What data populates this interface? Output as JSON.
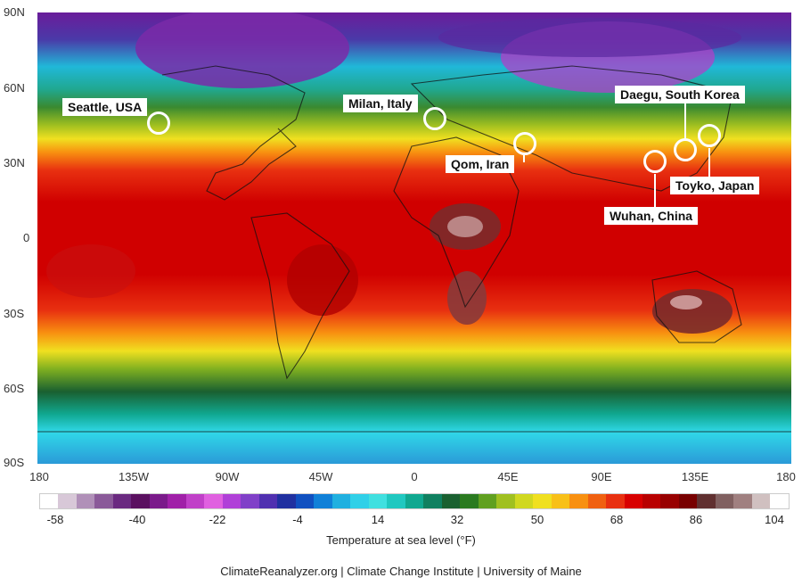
{
  "map": {
    "lat_labels": [
      "90N",
      "60N",
      "30N",
      "0",
      "30S",
      "60S",
      "90S"
    ],
    "lon_labels": [
      "180",
      "135W",
      "90W",
      "45W",
      "0",
      "45E",
      "90E",
      "135E",
      "180"
    ],
    "cities": [
      {
        "id": "seattle",
        "label": "Seattle, USA"
      },
      {
        "id": "milan",
        "label": "Milan, Italy"
      },
      {
        "id": "qom",
        "label": "Qom, Iran"
      },
      {
        "id": "daegu",
        "label": "Daegu, South Korea"
      },
      {
        "id": "tokyo",
        "label": "Toyko, Japan"
      },
      {
        "id": "wuhan",
        "label": "Wuhan, China"
      }
    ]
  },
  "legend": {
    "title": "Temperature at sea level (°F)",
    "ticks": [
      "-58",
      "-40",
      "-22",
      "-4",
      "14",
      "32",
      "50",
      "68",
      "86",
      "104"
    ],
    "colors": [
      "#ffffff",
      "#d8c8d8",
      "#b090b8",
      "#8a5a99",
      "#6a2a80",
      "#5a1060",
      "#7a1a8a",
      "#a020a8",
      "#c040c8",
      "#e060e0",
      "#b040d8",
      "#8040c8",
      "#5030b0",
      "#2030a0",
      "#1050c0",
      "#1080d8",
      "#20b0e0",
      "#30d0e8",
      "#40e0e0",
      "#20c8c0",
      "#10a890",
      "#108060",
      "#1a6030",
      "#2a7a20",
      "#60a020",
      "#a0c020",
      "#d0d820",
      "#f0e020",
      "#f8c018",
      "#f89010",
      "#f06010",
      "#e83010",
      "#d80000",
      "#b80000",
      "#980000",
      "#780000",
      "#603030",
      "#806060",
      "#a08080",
      "#d0c0c0",
      "#ffffff"
    ]
  },
  "credit": "ClimateReanalyzer.org | Climate Change Institute | University of Maine"
}
